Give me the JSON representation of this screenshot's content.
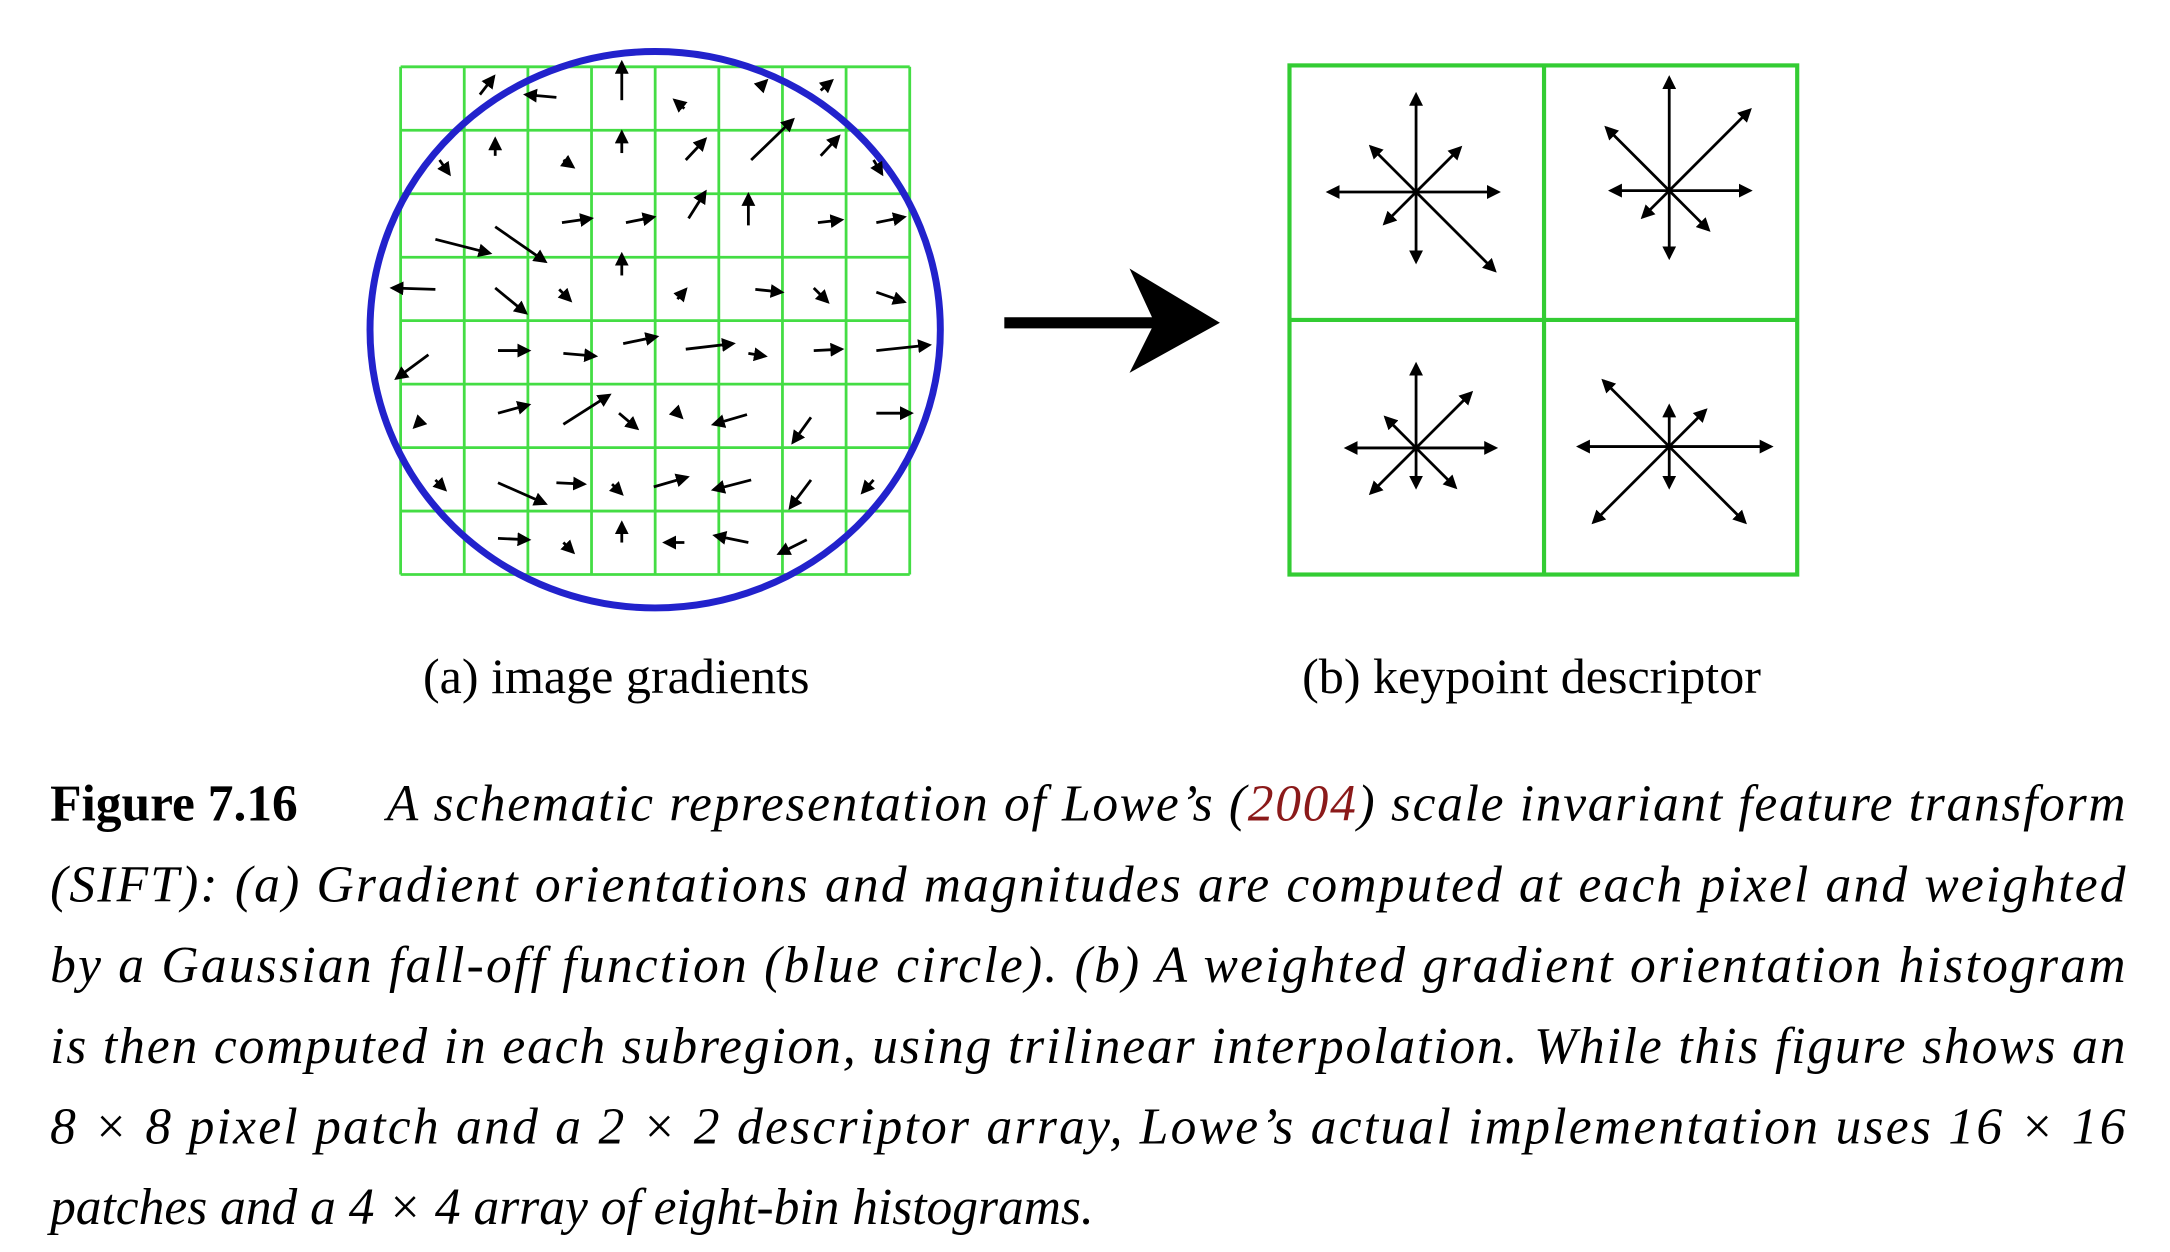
{
  "panels": [
    {
      "label": "(a) image gradients"
    },
    {
      "label": "(b) keypoint descriptor"
    }
  ],
  "caption": {
    "label": "Figure 7.16",
    "lines": [
      [
        "A schematic representation of Lowe’s (",
        "2004",
        ") scale invariant feature transform"
      ],
      [
        "(SIFT): (a) Gradient orientations and magnitudes are computed at each pixel and weighted"
      ],
      [
        "by a Gaussian fall-off function (blue circle).  (b) A weighted gradient orientation histogram"
      ],
      [
        "is then computed in each subregion, using trilinear interpolation. While this figure shows an"
      ],
      [
        "8 × 8 pixel patch and a 2 × 2 descriptor array, Lowe’s actual implementation uses 16 × 16"
      ],
      [
        "patches and a 4 × 4 array of eight-bin histograms."
      ]
    ]
  }
}
